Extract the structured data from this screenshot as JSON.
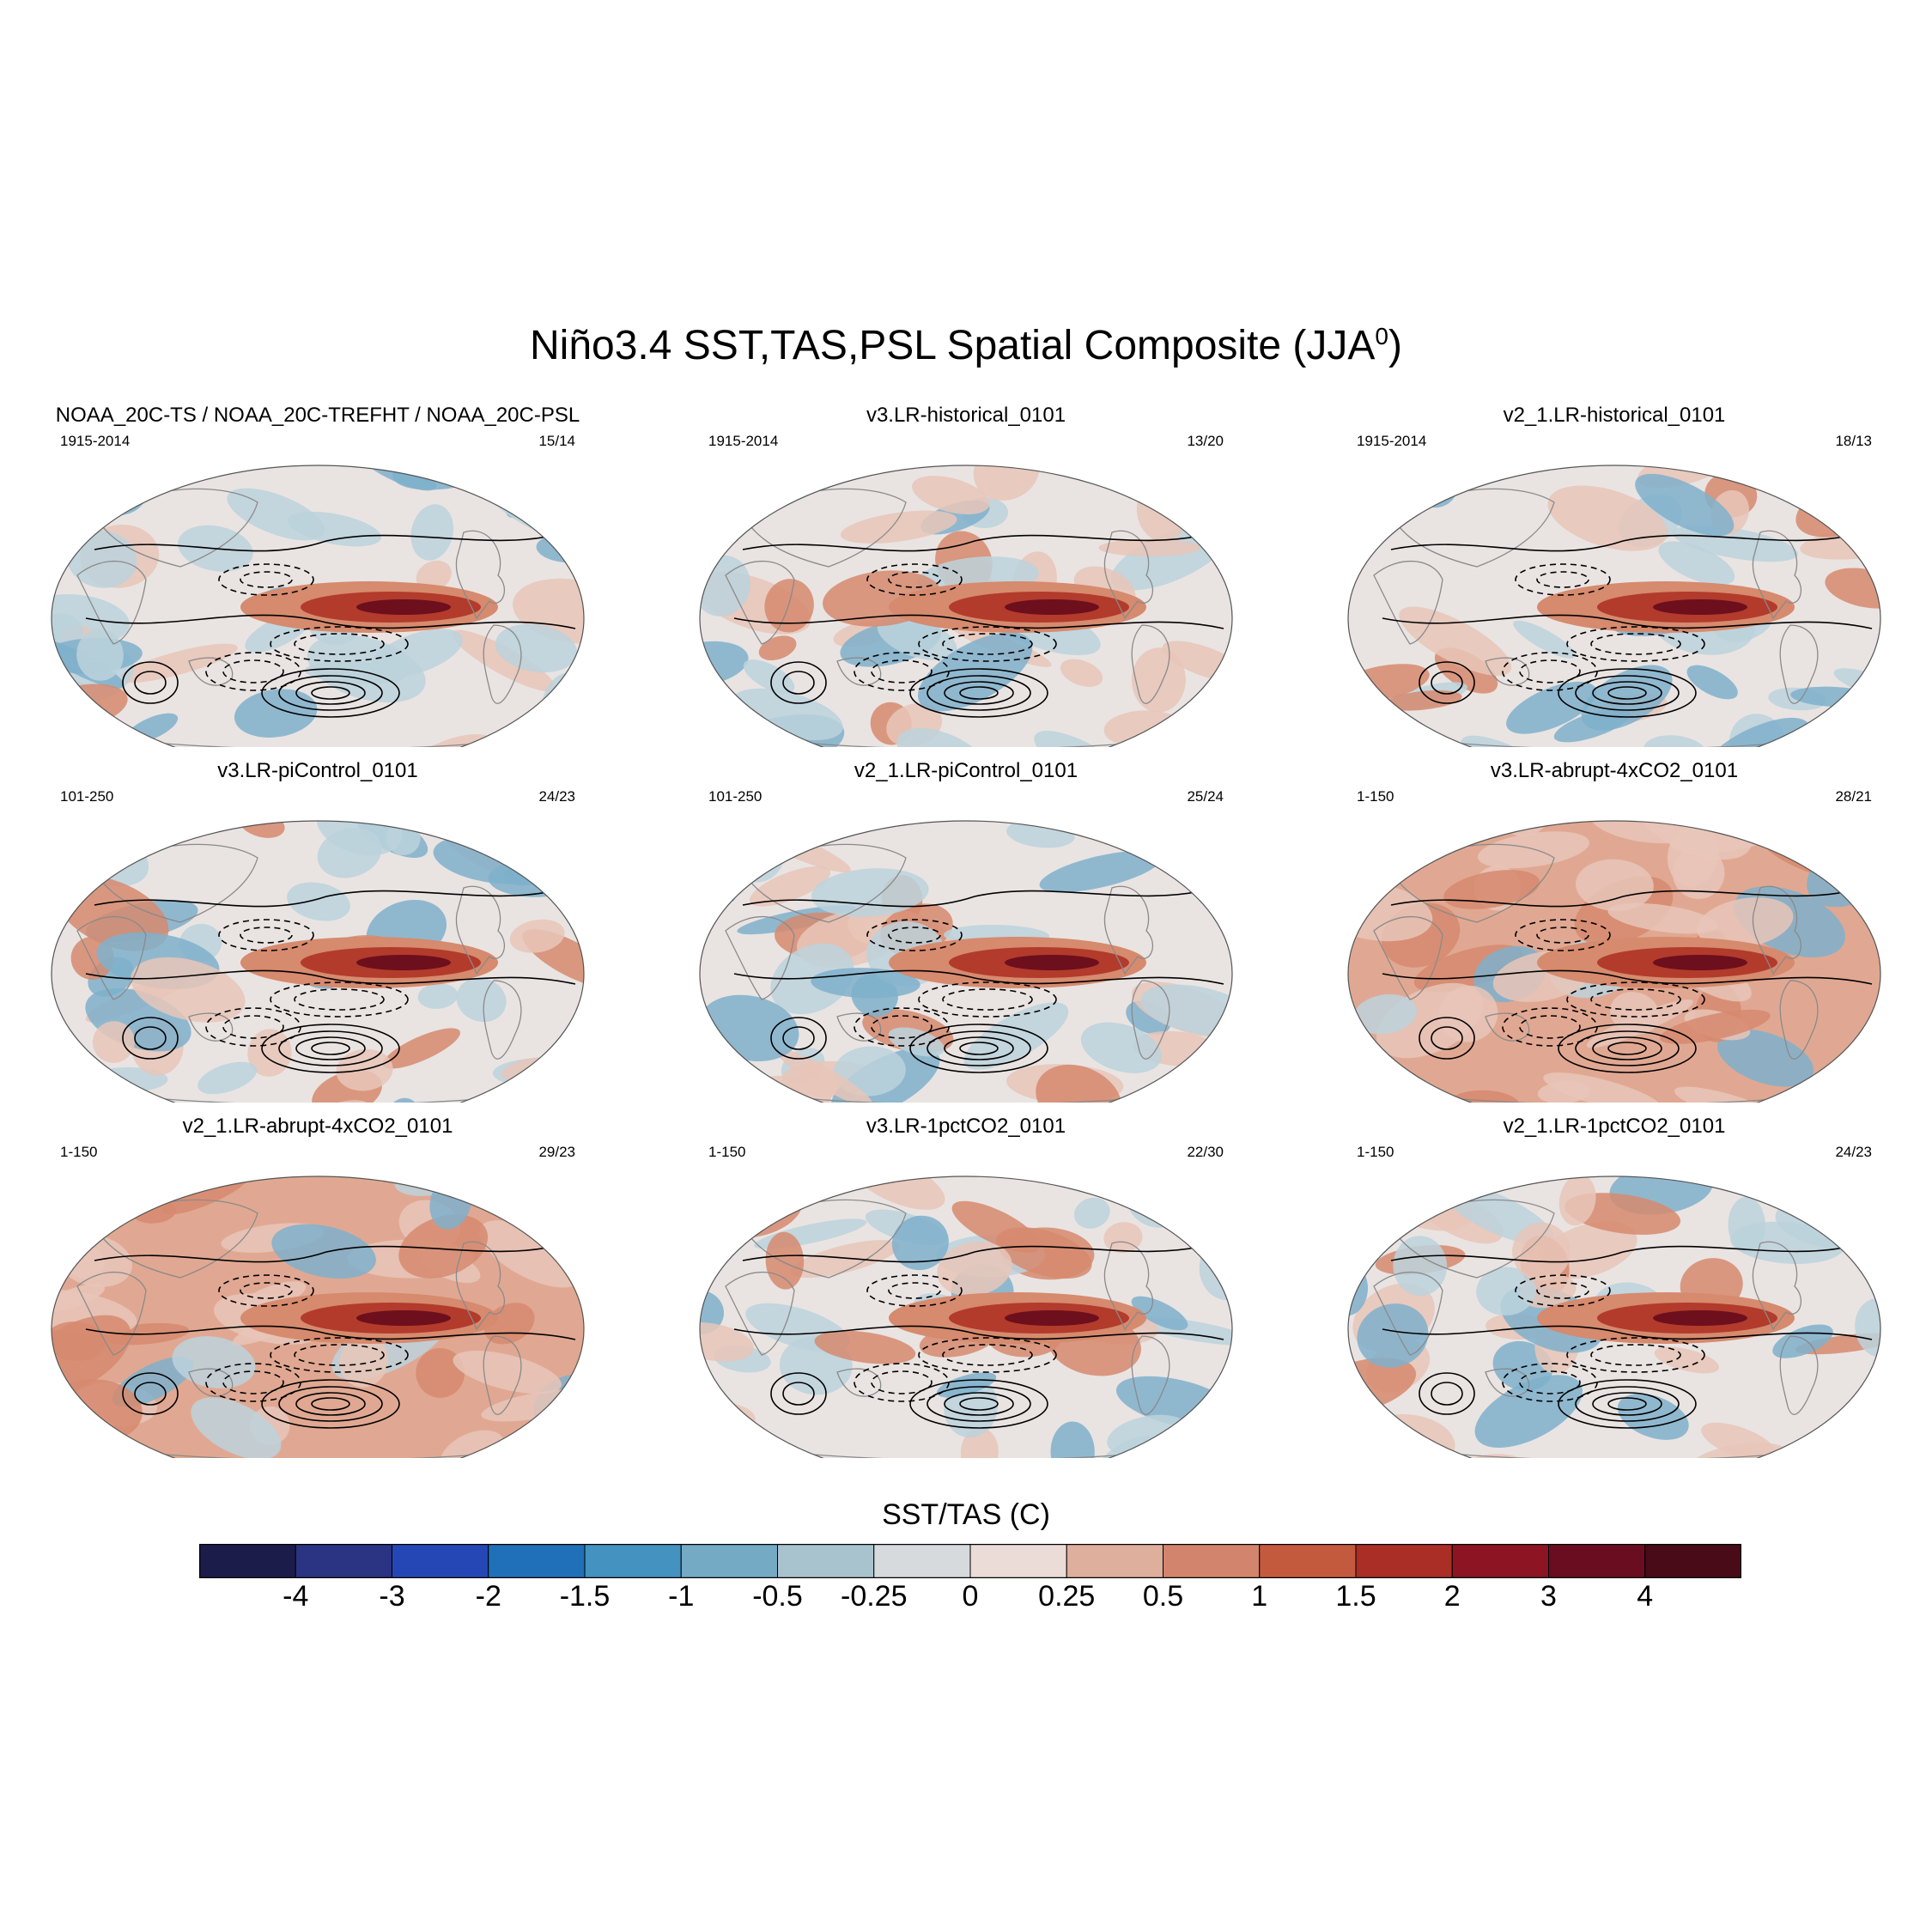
{
  "title": "Niño3.4 SST,TAS,PSL Spatial Composite (JJA",
  "title_superscript": "0",
  "title_suffix": ")",
  "panels": [
    {
      "title": "NOAA_20C-TS / NOAA_20C-TREFHT / NOAA_20C-PSL",
      "years": "1915-2014",
      "count": "15/14",
      "anomaly": "mixed"
    },
    {
      "title": "v3.LR-historical_0101",
      "years": "1915-2014",
      "count": "13/20",
      "anomaly": "warm"
    },
    {
      "title": "v2_1.LR-historical_0101",
      "years": "1915-2014",
      "count": "18/13",
      "anomaly": "mixed"
    },
    {
      "title": "v3.LR-piControl_0101",
      "years": "101-250",
      "count": "24/23",
      "anomaly": "mixed"
    },
    {
      "title": "v2_1.LR-piControl_0101",
      "years": "101-250",
      "count": "25/24",
      "anomaly": "mixed"
    },
    {
      "title": "v3.LR-abrupt-4xCO2_0101",
      "years": "1-150",
      "count": "28/21",
      "anomaly": "hot"
    },
    {
      "title": "v2_1.LR-abrupt-4xCO2_0101",
      "years": "1-150",
      "count": "29/23",
      "anomaly": "hot"
    },
    {
      "title": "v3.LR-1pctCO2_0101",
      "years": "1-150",
      "count": "22/30",
      "anomaly": "warm"
    },
    {
      "title": "v2_1.LR-1pctCO2_0101",
      "years": "1-150",
      "count": "24/23",
      "anomaly": "warm"
    }
  ],
  "colorbar": {
    "title": "SST/TAS (C)",
    "labels": [
      "-4",
      "-3",
      "-2",
      "-1.5",
      "-1",
      "-0.5",
      "-0.25",
      "0",
      "0.25",
      "0.5",
      "1",
      "1.5",
      "2",
      "3",
      "4"
    ],
    "colors": [
      "#1b1c4a",
      "#2b3383",
      "#2547b5",
      "#1f70b8",
      "#4392c0",
      "#74aac4",
      "#a8c3ce",
      "#d6dadc",
      "#ecdcd8",
      "#deaf9c",
      "#d2856c",
      "#c35a3e",
      "#aa2e26",
      "#8d1423",
      "#6b0d20",
      "#480b17"
    ]
  },
  "palette": {
    "ocean_neutral": "#e9e4e2",
    "cool_light": "#bcd2dc",
    "cool_mid": "#7fb0cb",
    "cool_deep": "#3d7fbb",
    "warm_light": "#e7c5b8",
    "warm_mid": "#d68a6e",
    "warm_deep": "#b23b2c",
    "warm_core": "#6d0f1d"
  }
}
